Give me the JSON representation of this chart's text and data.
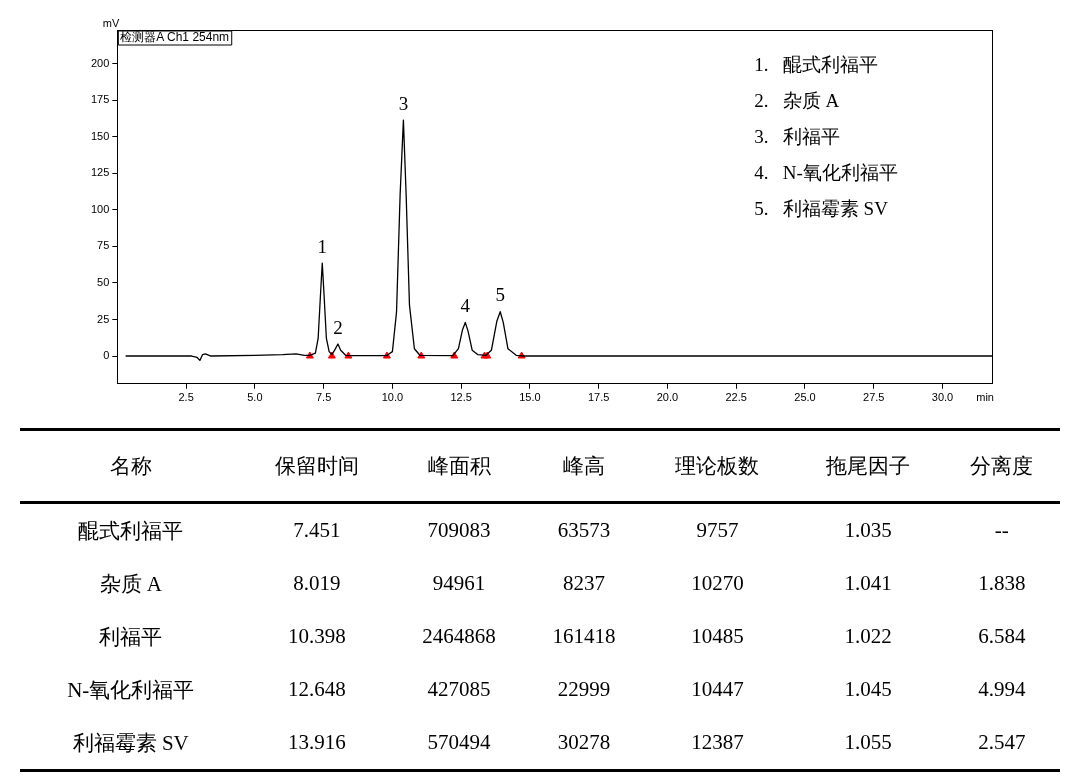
{
  "chart_data": [
    {
      "type": "line",
      "xlabel": "min",
      "ylabel": "mV",
      "xlim": [
        0,
        31.8
      ],
      "ylim": [
        -19,
        223
      ],
      "xticks": [
        2.5,
        {
          "value": 5,
          "label": "5.0"
        },
        7.5,
        {
          "value": 10,
          "label": "10.0"
        },
        12.5,
        {
          "value": 15,
          "label": "15.0"
        },
        17.5,
        {
          "value": 20,
          "label": "20.0"
        },
        22.5,
        {
          "value": 25,
          "label": "25.0"
        },
        27.5,
        {
          "value": 30,
          "label": "30.0"
        }
      ],
      "yticks": [
        0,
        25,
        50,
        75,
        100,
        125,
        150,
        175,
        200
      ],
      "series": [
        {
          "type": "line",
          "color": "#000000",
          "marker": "none",
          "x": [
            0.3,
            2.7,
            2.9,
            3.0,
            3.1,
            3.2,
            3.4,
            5.0,
            6.0,
            6.5,
            6.8,
            7.0,
            7.2,
            7.3,
            7.38,
            7.45,
            7.52,
            7.6,
            7.7,
            7.8,
            7.9,
            8.02,
            8.12,
            8.3,
            8.6,
            9.8,
            10.0,
            10.15,
            10.28,
            10.4,
            10.5,
            10.62,
            10.8,
            11.0,
            12.2,
            12.4,
            12.55,
            12.65,
            12.75,
            12.9,
            13.1,
            13.4,
            13.6,
            13.8,
            13.92,
            14.03,
            14.2,
            14.5,
            14.8,
            31.8
          ],
          "values": [
            0,
            0,
            -1,
            -3,
            1,
            1.5,
            0,
            0.5,
            1,
            1.5,
            0.5,
            0.5,
            2,
            12,
            40,
            63.6,
            40,
            12,
            3,
            1,
            4,
            8.2,
            4,
            0.5,
            0.3,
            0.3,
            3,
            30,
            110,
            161.4,
            110,
            35,
            5,
            0.5,
            0.3,
            5,
            18,
            23,
            17,
            4,
            1,
            0.5,
            4,
            24,
            30.3,
            23,
            5,
            0.5,
            0,
            0
          ]
        },
        {
          "type": "scatter",
          "color": "#ff0000",
          "marker": "triangle",
          "x": [
            7.0,
            7.8,
            8.4,
            9.8,
            11.05,
            12.25,
            13.35,
            13.45,
            14.7
          ],
          "values": [
            0,
            0,
            0,
            0,
            0,
            0,
            0,
            0,
            0
          ]
        }
      ],
      "annotations": [
        "检测器A Ch1 254nm",
        "1.   醌式利福平",
        "2.   杂质 A",
        "3.   利福平",
        "4.   N-氧化利福平",
        "5.   利福霉素 SV",
        {
          "text": "1",
          "x": 7.45,
          "y": 63.6
        },
        {
          "text": "2",
          "x": 8.02,
          "y": 8.2
        },
        {
          "text": "3",
          "x": 10.4,
          "y": 161.4
        },
        {
          "text": "4",
          "x": 12.65,
          "y": 23
        },
        {
          "text": "5",
          "x": 13.92,
          "y": 30.3
        }
      ]
    },
    {
      "type": "other",
      "categories": [
        "名称",
        "保留时间",
        "峰面积",
        "峰高",
        "理论板数",
        "拖尾因子",
        "分离度"
      ],
      "cell_labels": [
        [
          "醌式利福平",
          "7.451",
          "709083",
          "63573",
          "9757",
          "1.035",
          "--"
        ],
        [
          "杂质 A",
          "8.019",
          "94961",
          "8237",
          "10270",
          "1.041",
          "1.838"
        ],
        [
          "利福平",
          "10.398",
          "2464868",
          "161418",
          "10485",
          "1.022",
          "6.584"
        ],
        [
          "N-氧化利福平",
          "12.648",
          "427085",
          "22999",
          "10447",
          "1.045",
          "4.994"
        ],
        [
          "利福霉素 SV",
          "13.916",
          "570494",
          "30278",
          "12387",
          "1.055",
          "2.547"
        ]
      ]
    }
  ]
}
